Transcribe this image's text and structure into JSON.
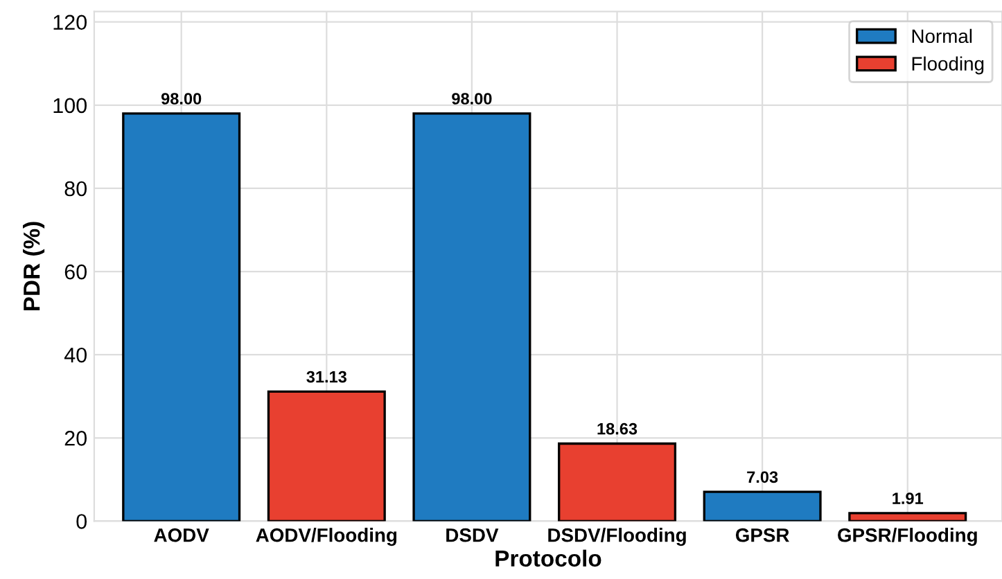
{
  "chart_data": {
    "type": "bar",
    "xlabel": "Protocolo",
    "ylabel": "PDR (%)",
    "categories": [
      "AODV",
      "AODV/Flooding",
      "DSDV",
      "DSDV/Flooding",
      "GPSR",
      "GPSR/Flooding"
    ],
    "series": [
      {
        "name": "Normal",
        "color": "#1f7bc1",
        "values": [
          98.0,
          null,
          98.0,
          null,
          7.03,
          null
        ],
        "value_labels": [
          "98.00",
          null,
          "98.00",
          null,
          "7.03",
          null
        ]
      },
      {
        "name": "Flooding",
        "color": "#e84030",
        "values": [
          null,
          31.13,
          null,
          18.63,
          null,
          1.91
        ],
        "value_labels": [
          null,
          "31.13",
          null,
          "18.63",
          null,
          "1.91"
        ]
      }
    ],
    "ylim": [
      0,
      122.5
    ],
    "yticks": [
      0,
      20,
      40,
      60,
      80,
      100,
      120
    ],
    "grid": true,
    "legend": "top right"
  }
}
